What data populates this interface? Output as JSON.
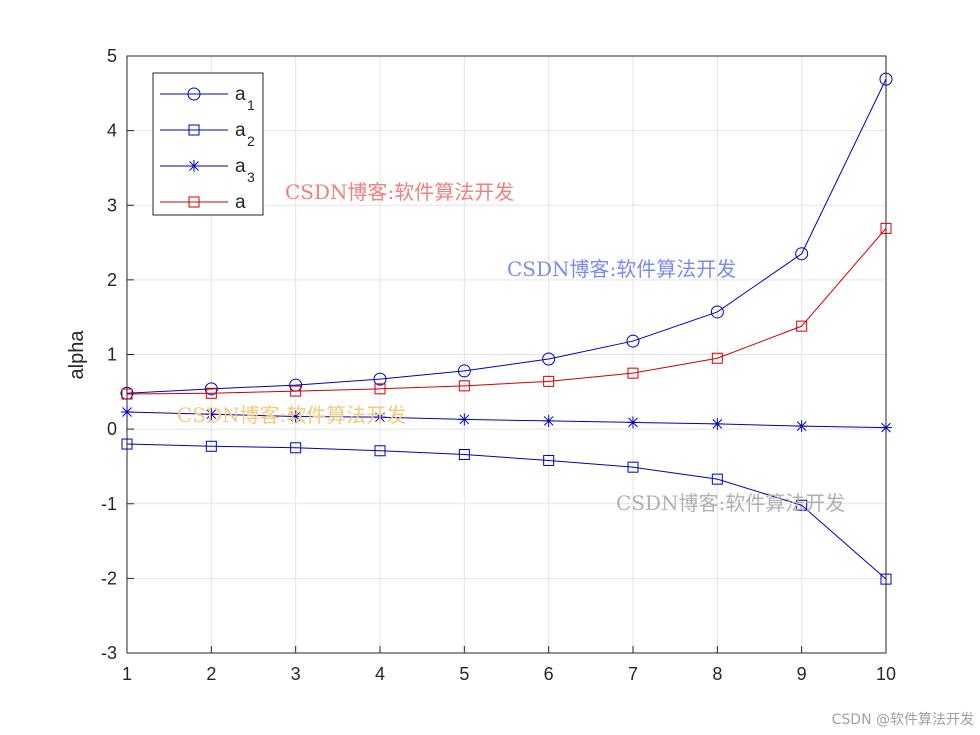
{
  "chart_data": {
    "type": "line",
    "title": "",
    "xlabel": "",
    "ylabel": "alpha",
    "xlim": [
      1,
      10
    ],
    "ylim": [
      -3,
      5
    ],
    "xticks": [
      "1",
      "2",
      "3",
      "4",
      "5",
      "6",
      "7",
      "8",
      "9",
      "10"
    ],
    "yticks": [
      "-3",
      "-2",
      "-1",
      "0",
      "1",
      "2",
      "3",
      "4",
      "5"
    ],
    "grid": true,
    "legend_placement": "top-left",
    "x": [
      1,
      2,
      3,
      4,
      5,
      6,
      7,
      8,
      9,
      10
    ],
    "series": [
      {
        "name": "a",
        "sub": "1",
        "color": "#0000c0",
        "marker": "circle",
        "values": [
          0.48,
          0.54,
          0.59,
          0.67,
          0.78,
          0.94,
          1.18,
          1.57,
          2.35,
          4.69
        ]
      },
      {
        "name": "a",
        "sub": "2",
        "color": "#0000c0",
        "marker": "square",
        "values": [
          -0.2,
          -0.23,
          -0.25,
          -0.29,
          -0.34,
          -0.42,
          -0.51,
          -0.67,
          -1.02,
          -2.01
        ]
      },
      {
        "name": "a",
        "sub": "3",
        "color": "#0000c0",
        "marker": "star",
        "values": [
          0.23,
          0.2,
          0.17,
          0.16,
          0.13,
          0.11,
          0.09,
          0.07,
          0.04,
          0.02
        ]
      },
      {
        "name": "a",
        "sub": "",
        "color": "#d00000",
        "marker": "square",
        "values": [
          0.47,
          0.48,
          0.51,
          0.54,
          0.58,
          0.64,
          0.75,
          0.95,
          1.38,
          2.69
        ]
      }
    ]
  },
  "watermarks": [
    {
      "text": "CSDN博客:软件算法开发",
      "color": "#f08080"
    },
    {
      "text": "CSDN博客:软件算法开发",
      "color": "#7a8cf0"
    },
    {
      "text": "CSDN博客:软件算法开发",
      "color": "#f5c97a"
    },
    {
      "text": "CSDN博客:软件算法开发",
      "color": "#b0b0b0"
    }
  ],
  "footer": "CSDN @软件算法开发"
}
